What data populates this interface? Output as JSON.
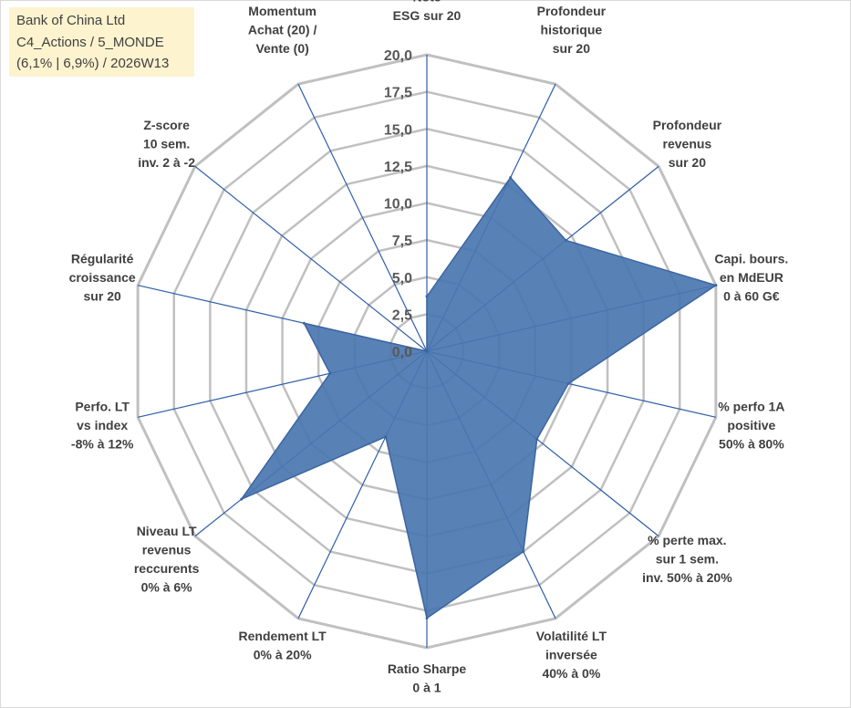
{
  "info": {
    "line1": "Bank of China Ltd",
    "line2": "C4_Actions / 5_MONDE",
    "line3": "(6,1% | 6,9%) / 2026W13"
  },
  "colors": {
    "grid": "#c0c0c0",
    "spoke": "#2f5fa8",
    "fill": "#4a76b0",
    "outline": "#3b65a0",
    "text": "#404040"
  },
  "chart_data": {
    "type": "radar",
    "title": "",
    "r_range": [
      0,
      20
    ],
    "r_step": 2.5,
    "tick_labels": [
      "0,0",
      "2,5",
      "5,0",
      "7,5",
      "10,0",
      "12,5",
      "15,0",
      "17,5",
      "20,0"
    ],
    "axes": [
      {
        "label": [
          "Note",
          "ESG sur 20"
        ],
        "value": 3.7
      },
      {
        "label": [
          "Profondeur",
          "historique",
          "sur 20"
        ],
        "value": 13.0
      },
      {
        "label": [
          "Profondeur",
          "revenus",
          "sur 20"
        ],
        "value": 12.0
      },
      {
        "label": [
          "Capi. bours.",
          "en MdEUR",
          "0 à 60 G€"
        ],
        "value": 20.0
      },
      {
        "label": [
          "% perfo 1A",
          "positive",
          "50% à 80%"
        ],
        "value": 9.8
      },
      {
        "label": [
          "% perte max.",
          "sur 1 sem.",
          "inv. 50% à 20%"
        ],
        "value": 9.5
      },
      {
        "label": [
          "Volatilité LT",
          "inversée",
          "40% à 0%"
        ],
        "value": 15.0
      },
      {
        "label": [
          "Ratio Sharpe",
          "0 à 1"
        ],
        "value": 18.0
      },
      {
        "label": [
          "Rendement LT",
          "0% à 20%"
        ],
        "value": 6.4
      },
      {
        "label": [
          "Niveau LT",
          "revenus",
          "reccurents",
          "0% à 6%"
        ],
        "value": 16.0
      },
      {
        "label": [
          "Perfo. LT",
          "vs index",
          "-8% à 12%"
        ],
        "value": 6.7
      },
      {
        "label": [
          "Régularité",
          "croissance",
          "sur 20"
        ],
        "value": 8.5
      },
      {
        "label": [
          "Z-score",
          "10 sem.",
          "inv. 2 à -2"
        ],
        "value": 0.0
      },
      {
        "label": [
          "Momentum",
          "Achat (20) /",
          "Vente (0)"
        ],
        "value": 0.0
      }
    ]
  }
}
